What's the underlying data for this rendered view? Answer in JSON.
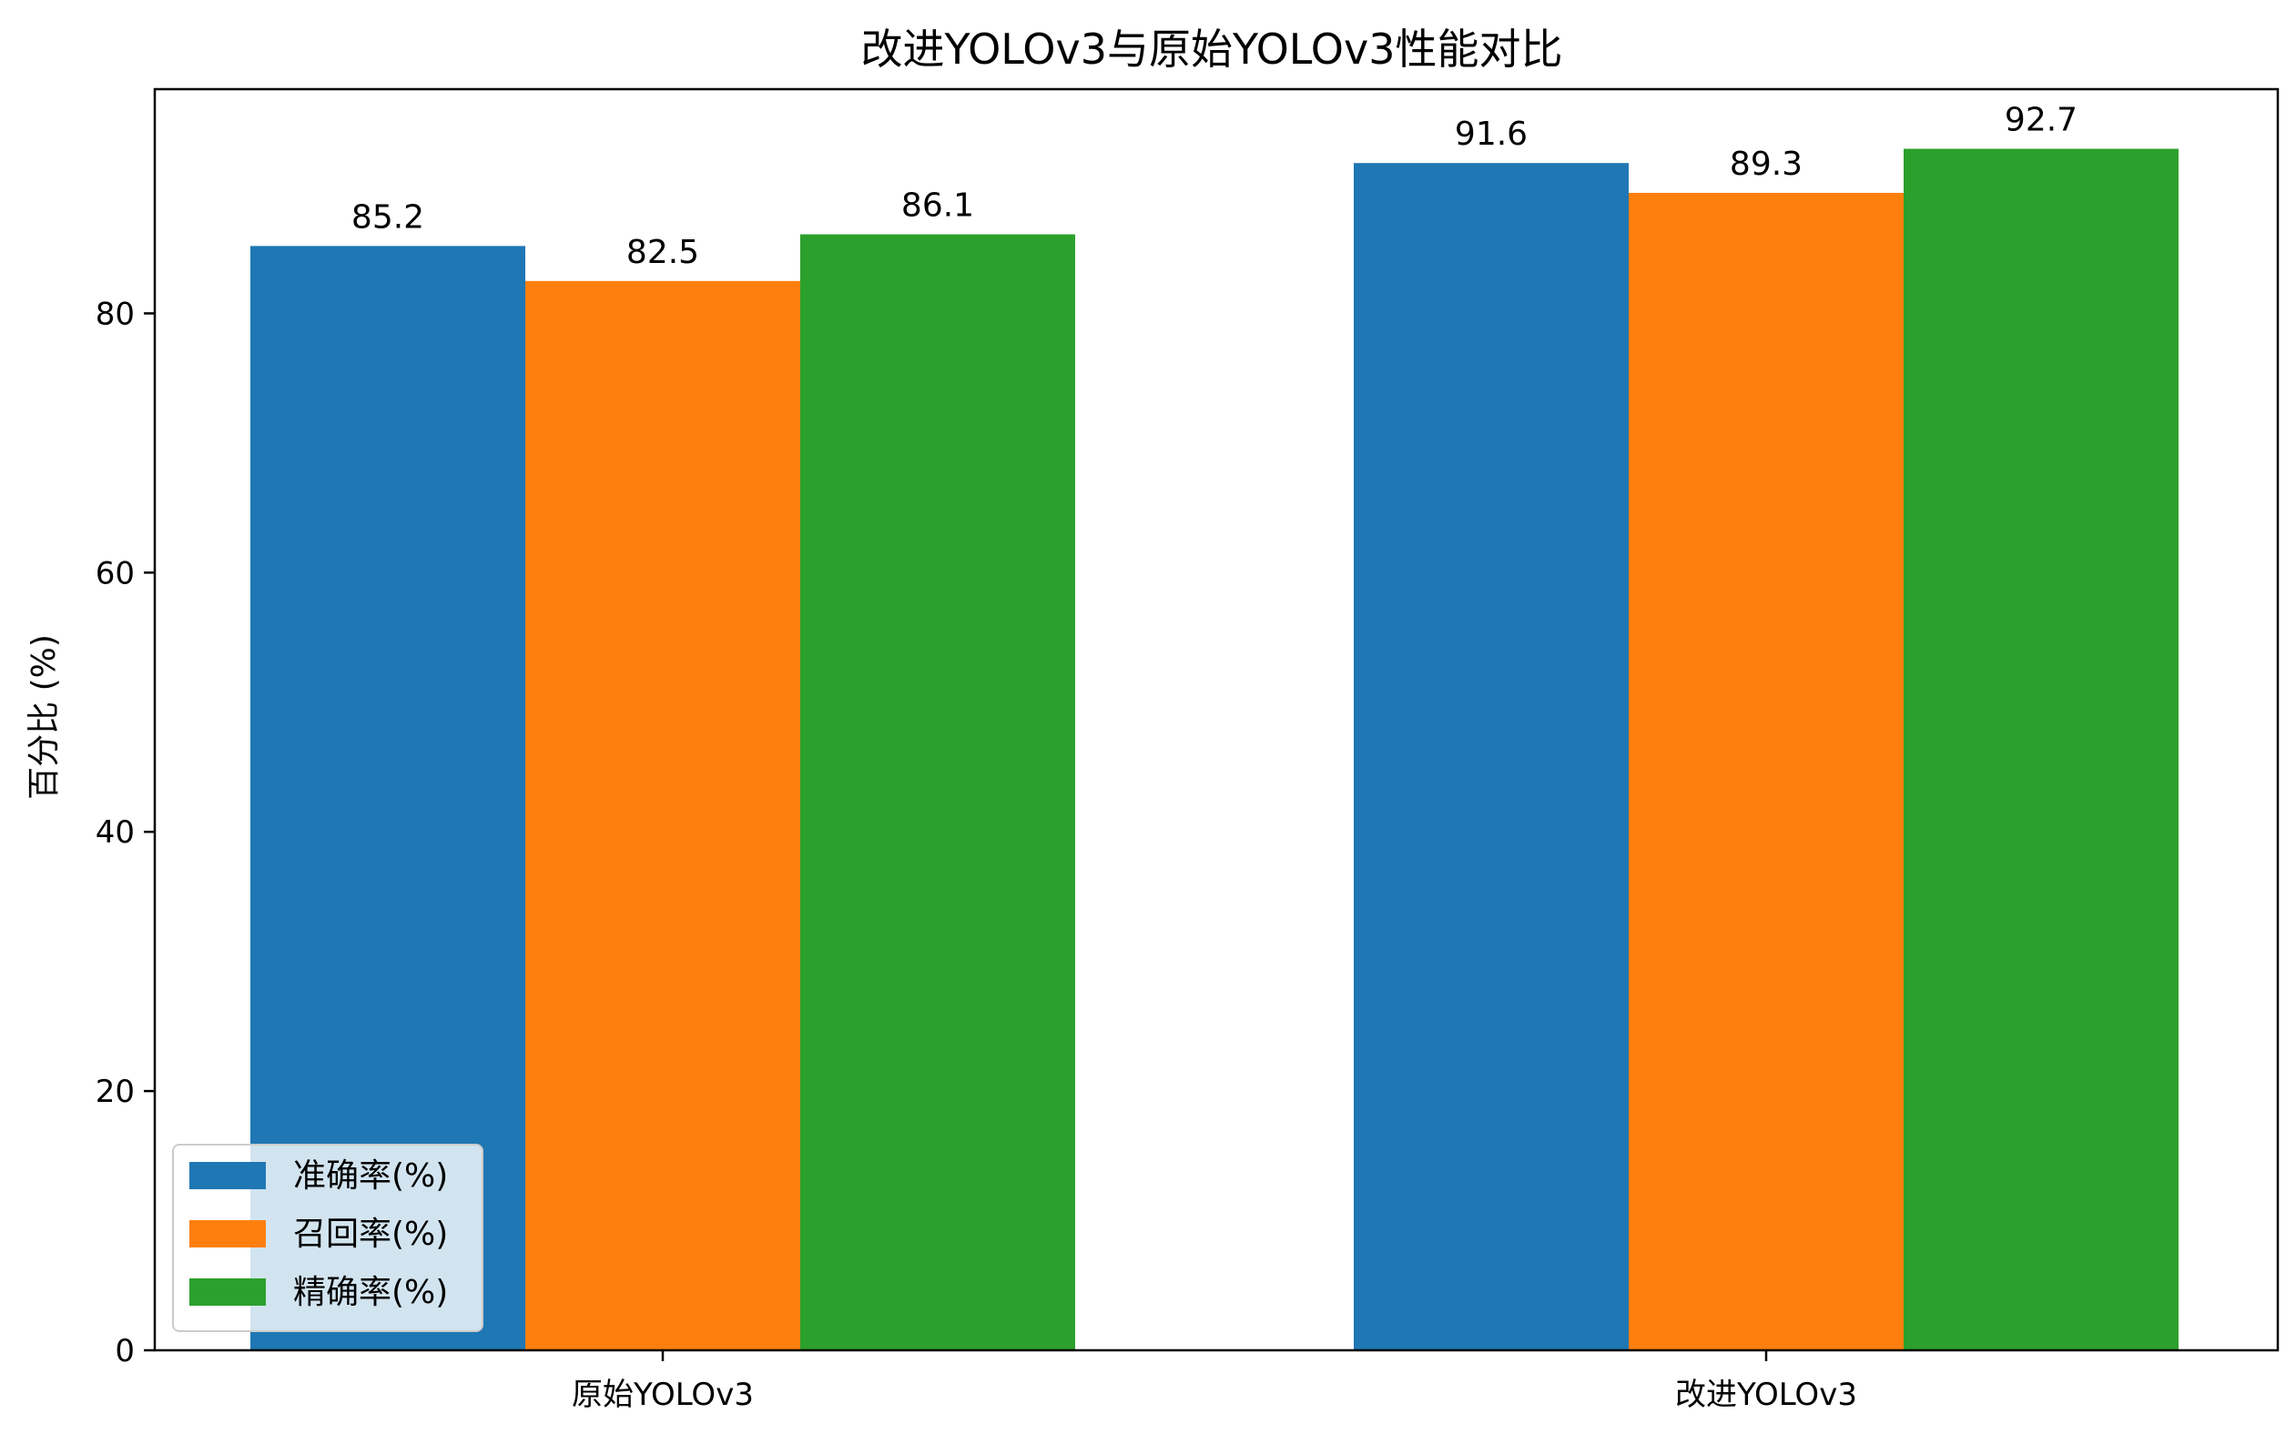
{
  "chart_data": {
    "type": "bar",
    "title": "改进YOLOv3与原始YOLOv3性能对比",
    "xlabel": "",
    "ylabel": "百分比 (%)",
    "categories": [
      "原始YOLOv3",
      "改进YOLOv3"
    ],
    "series": [
      {
        "name": "准确率(%)",
        "values": [
          85.2,
          91.6
        ],
        "color": "#1f77b4"
      },
      {
        "name": "召回率(%)",
        "values": [
          82.5,
          89.3
        ],
        "color": "#ff7f0e"
      },
      {
        "name": "精确率(%)",
        "values": [
          86.1,
          92.7
        ],
        "color": "#2ca02c"
      }
    ],
    "ylim": [
      0,
      97.3
    ],
    "yticks": [
      0,
      20,
      40,
      60,
      80
    ],
    "ytick_labels": [
      "0",
      "20",
      "40",
      "60",
      "80"
    ],
    "grid": false,
    "legend_position": "lower-left",
    "data_labels": [
      [
        "85.2",
        "91.6"
      ],
      [
        "82.5",
        "89.3"
      ],
      [
        "86.1",
        "92.7"
      ]
    ]
  }
}
